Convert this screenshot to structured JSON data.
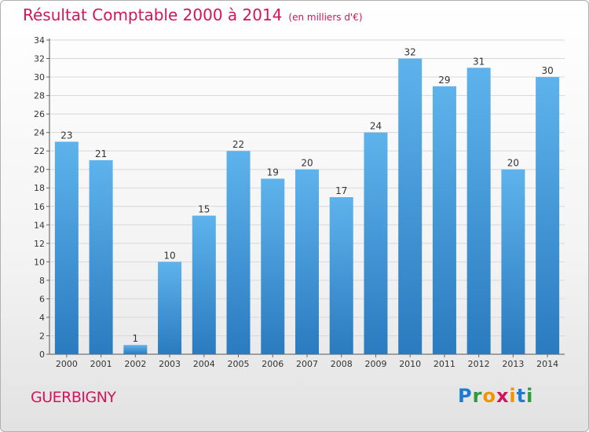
{
  "header": {
    "title": "Résultat Comptable 2000 à 2014",
    "unit": "(en milliers d'€)"
  },
  "footer": {
    "commune": "GUERBIGNY",
    "logo": "Proxiti"
  },
  "colors": {
    "accent": "#d4145a",
    "bar_top": "#5eb3ec",
    "bar_bottom": "#2a7bbf"
  },
  "chart_data": {
    "type": "bar",
    "title": "Résultat Comptable 2000 à 2014",
    "xlabel": "",
    "ylabel": "",
    "ylim": [
      0,
      34
    ],
    "yticks": [
      0,
      2,
      4,
      6,
      8,
      10,
      12,
      14,
      16,
      18,
      20,
      22,
      24,
      26,
      28,
      30,
      32,
      34
    ],
    "categories": [
      "2000",
      "2001",
      "2002",
      "2003",
      "2004",
      "2005",
      "2006",
      "2007",
      "2008",
      "2009",
      "2010",
      "2011",
      "2012",
      "2013",
      "2014"
    ],
    "values": [
      23,
      21,
      1,
      10,
      15,
      22,
      19,
      20,
      17,
      24,
      32,
      29,
      31,
      20,
      30
    ],
    "grid": true,
    "legend": "none"
  }
}
